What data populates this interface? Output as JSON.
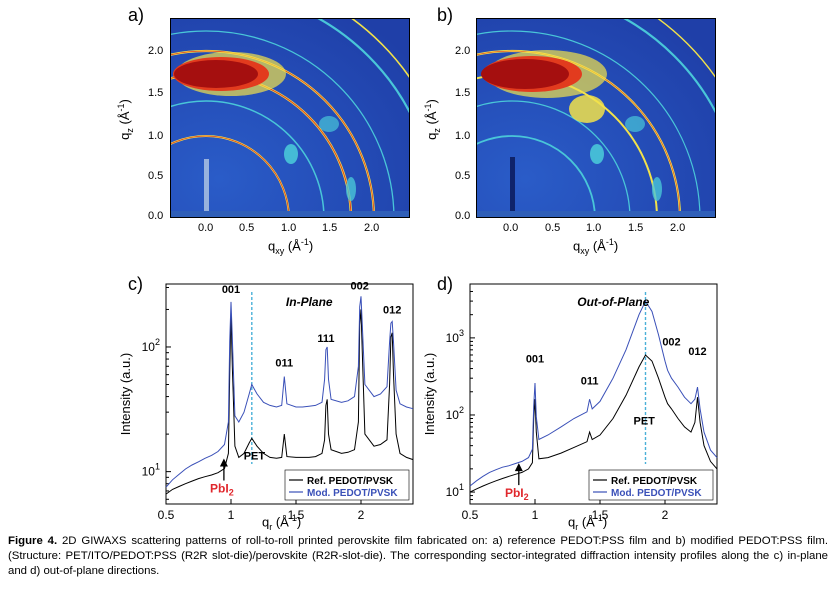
{
  "figure": {
    "panel_a": {
      "letter": "a)"
    },
    "panel_b": {
      "letter": "b)"
    },
    "panel_c": {
      "letter": "c)"
    },
    "panel_d": {
      "letter": "d)"
    },
    "caption": {
      "label": "Figure 4.",
      "text": "2D GIWAXS scattering patterns of roll-to-roll printed perovskite film fabricated on: a) reference PEDOT:PSS film and b) modified PEDOT:PSS film. (Structure: PET/ITO/PEDOT:PSS (R2R slot-die)/perovskite (R2R-slot-die). The corresponding sector-integrated diffraction intensity profiles along the c) in-plane and d) out-of-plane directions."
    }
  },
  "chart_data": [
    {
      "type": "heatmap",
      "panel": "a)",
      "xlabel": "q_xy (Å^-1)",
      "ylabel": "q_z (Å^-1)",
      "xlim": [
        -0.4,
        2.4
      ],
      "ylim": [
        0.0,
        2.35
      ],
      "x_ticks": [
        "0.0",
        "0.5",
        "1.0",
        "1.5",
        "2.0"
      ],
      "y_ticks": [
        "0.0",
        "0.5",
        "1.0",
        "1.5",
        "2.0"
      ],
      "colormap": [
        "#1f3fa8",
        "#2f7fd8",
        "#49c6d8",
        "#f2e24a",
        "#e23b1e",
        "#a50f0f"
      ]
    },
    {
      "type": "heatmap",
      "panel": "b)",
      "xlabel": "q_xy (Å^-1)",
      "ylabel": "q_z (Å^-1)",
      "xlim": [
        -0.4,
        2.4
      ],
      "ylim": [
        0.0,
        2.35
      ],
      "x_ticks": [
        "0.0",
        "0.5",
        "1.0",
        "1.5",
        "2.0"
      ],
      "y_ticks": [
        "0.0",
        "0.5",
        "1.0",
        "1.5",
        "2.0"
      ],
      "colormap": [
        "#1f3fa8",
        "#2f7fd8",
        "#49c6d8",
        "#f2e24a",
        "#e23b1e",
        "#a50f0f"
      ]
    },
    {
      "type": "line",
      "panel": "c)",
      "title": "In-Plane",
      "xlabel": "q_r (Å^-1)",
      "ylabel": "Intensity (a.u.)",
      "xlim": [
        0.5,
        2.4
      ],
      "ylim": [
        5.5,
        320
      ],
      "y_scale": "log",
      "x_ticks": [
        "0.5",
        "1",
        "1.5",
        "2"
      ],
      "y_ticks": [
        {
          "base": "10",
          "exp": "1",
          "value": 10
        },
        {
          "base": "10",
          "exp": "2",
          "value": 100
        }
      ],
      "legend_position": "bottom-right",
      "series": [
        {
          "name": "Ref. PEDOT/PVSK",
          "color": "#000000",
          "points": [
            [
              0.5,
              6.6
            ],
            [
              0.55,
              7.2
            ],
            [
              0.6,
              7.6
            ],
            [
              0.65,
              8.0
            ],
            [
              0.7,
              8.4
            ],
            [
              0.75,
              8.8
            ],
            [
              0.8,
              9.1
            ],
            [
              0.85,
              9.4
            ],
            [
              0.9,
              9.8
            ],
            [
              0.95,
              10.6
            ],
            [
              0.98,
              14
            ],
            [
              0.99,
              60
            ],
            [
              1.0,
              190
            ],
            [
              1.01,
              70
            ],
            [
              1.03,
              16
            ],
            [
              1.06,
              13
            ],
            [
              1.1,
              14
            ],
            [
              1.14,
              17
            ],
            [
              1.16,
              18.5
            ],
            [
              1.2,
              16
            ],
            [
              1.25,
              14
            ],
            [
              1.3,
              13
            ],
            [
              1.35,
              12.8
            ],
            [
              1.39,
              13
            ],
            [
              1.41,
              20
            ],
            [
              1.43,
              13.2
            ],
            [
              1.5,
              13
            ],
            [
              1.55,
              13
            ],
            [
              1.6,
              13
            ],
            [
              1.65,
              13.2
            ],
            [
              1.7,
              14
            ],
            [
              1.72,
              18
            ],
            [
              1.73,
              34
            ],
            [
              1.74,
              38
            ],
            [
              1.75,
              20
            ],
            [
              1.77,
              15
            ],
            [
              1.85,
              14
            ],
            [
              1.9,
              14.3
            ],
            [
              1.95,
              15
            ],
            [
              1.98,
              25
            ],
            [
              1.99,
              150
            ],
            [
              2.0,
              200
            ],
            [
              2.01,
              90
            ],
            [
              2.03,
              20
            ],
            [
              2.1,
              16
            ],
            [
              2.15,
              16.5
            ],
            [
              2.2,
              18
            ],
            [
              2.22,
              50
            ],
            [
              2.23,
              120
            ],
            [
              2.24,
              130
            ],
            [
              2.25,
              60
            ],
            [
              2.27,
              20
            ],
            [
              2.3,
              14
            ],
            [
              2.35,
              13
            ],
            [
              2.4,
              12.5
            ]
          ]
        },
        {
          "name": "Mod. PEDOT/PVSK",
          "color": "#3a50b8",
          "points": [
            [
              0.5,
              7.5
            ],
            [
              0.55,
              8.6
            ],
            [
              0.6,
              9.5
            ],
            [
              0.65,
              10.5
            ],
            [
              0.7,
              11.3
            ],
            [
              0.75,
              12
            ],
            [
              0.8,
              12.8
            ],
            [
              0.85,
              13.5
            ],
            [
              0.9,
              14.5
            ],
            [
              0.95,
              16.5
            ],
            [
              0.98,
              25
            ],
            [
              0.99,
              110
            ],
            [
              1.0,
              230
            ],
            [
              1.01,
              120
            ],
            [
              1.03,
              28
            ],
            [
              1.06,
              25
            ],
            [
              1.1,
              30
            ],
            [
              1.14,
              42
            ],
            [
              1.16,
              50
            ],
            [
              1.2,
              42
            ],
            [
              1.25,
              36
            ],
            [
              1.3,
              34
            ],
            [
              1.35,
              33
            ],
            [
              1.39,
              34
            ],
            [
              1.41,
              58
            ],
            [
              1.43,
              35
            ],
            [
              1.5,
              33
            ],
            [
              1.55,
              33
            ],
            [
              1.6,
              33.5
            ],
            [
              1.65,
              34
            ],
            [
              1.7,
              36
            ],
            [
              1.72,
              55
            ],
            [
              1.73,
              95
            ],
            [
              1.74,
              100
            ],
            [
              1.75,
              55
            ],
            [
              1.77,
              38
            ],
            [
              1.85,
              36
            ],
            [
              1.9,
              37
            ],
            [
              1.95,
              40
            ],
            [
              1.98,
              70
            ],
            [
              1.99,
              210
            ],
            [
              2.0,
              255
            ],
            [
              2.01,
              150
            ],
            [
              2.03,
              50
            ],
            [
              2.1,
              40
            ],
            [
              2.15,
              42
            ],
            [
              2.2,
              48
            ],
            [
              2.22,
              110
            ],
            [
              2.23,
              155
            ],
            [
              2.24,
              160
            ],
            [
              2.25,
              110
            ],
            [
              2.27,
              45
            ],
            [
              2.3,
              35
            ],
            [
              2.35,
              33
            ],
            [
              2.4,
              32
            ]
          ]
        }
      ],
      "annotations": [
        {
          "text": "001",
          "x": 1.0,
          "y": 270
        },
        {
          "text": "011",
          "x": 1.41,
          "y": 70
        },
        {
          "text": "111",
          "x": 1.73,
          "y": 110
        },
        {
          "text": "002",
          "x": 1.99,
          "y": 290
        },
        {
          "text": "012",
          "x": 2.24,
          "y": 185
        },
        {
          "text": "PET",
          "x": 1.18,
          "y": 12.5
        },
        {
          "text": "PbI2",
          "x": 0.93,
          "y": 6.8,
          "color": "#e0272c"
        }
      ],
      "dashed_marker_x": 1.16
    },
    {
      "type": "line",
      "panel": "d)",
      "title": "Out-of-Plane",
      "xlabel": "q_r (Å^-1)",
      "ylabel": "Intensity (a.u.)",
      "xlim": [
        0.5,
        2.4
      ],
      "ylim": [
        7,
        5000
      ],
      "y_scale": "log",
      "x_ticks": [
        "0.5",
        "1",
        "1.5",
        "2"
      ],
      "y_ticks": [
        {
          "base": "10",
          "exp": "1",
          "value": 10
        },
        {
          "base": "10",
          "exp": "2",
          "value": 100
        },
        {
          "base": "10",
          "exp": "3",
          "value": 1000
        }
      ],
      "legend_position": "bottom-right",
      "series": [
        {
          "name": "Ref. PEDOT/PVSK",
          "color": "#000000",
          "points": [
            [
              0.5,
              10
            ],
            [
              0.55,
              11
            ],
            [
              0.6,
              12
            ],
            [
              0.65,
              13
            ],
            [
              0.7,
              14
            ],
            [
              0.75,
              15
            ],
            [
              0.8,
              16
            ],
            [
              0.85,
              17
            ],
            [
              0.9,
              18
            ],
            [
              0.95,
              20
            ],
            [
              0.98,
              24
            ],
            [
              0.99,
              90
            ],
            [
              1.0,
              160
            ],
            [
              1.01,
              60
            ],
            [
              1.03,
              27
            ],
            [
              1.1,
              28
            ],
            [
              1.2,
              32
            ],
            [
              1.3,
              38
            ],
            [
              1.4,
              45
            ],
            [
              1.42,
              60
            ],
            [
              1.44,
              48
            ],
            [
              1.5,
              55
            ],
            [
              1.6,
              90
            ],
            [
              1.7,
              180
            ],
            [
              1.8,
              420
            ],
            [
              1.85,
              600
            ],
            [
              1.9,
              500
            ],
            [
              1.95,
              300
            ],
            [
              2.0,
              170
            ],
            [
              2.02,
              140
            ],
            [
              2.05,
              120
            ],
            [
              2.1,
              90
            ],
            [
              2.15,
              70
            ],
            [
              2.2,
              60
            ],
            [
              2.23,
              80
            ],
            [
              2.25,
              170
            ],
            [
              2.27,
              80
            ],
            [
              2.3,
              40
            ],
            [
              2.35,
              25
            ],
            [
              2.4,
              20
            ]
          ]
        },
        {
          "name": "Mod. PEDOT/PVSK",
          "color": "#3a50b8",
          "points": [
            [
              0.5,
              12
            ],
            [
              0.55,
              14
            ],
            [
              0.6,
              16
            ],
            [
              0.65,
              18
            ],
            [
              0.7,
              19.5
            ],
            [
              0.75,
              21
            ],
            [
              0.8,
              22
            ],
            [
              0.85,
              23.5
            ],
            [
              0.9,
              25
            ],
            [
              0.95,
              28
            ],
            [
              0.98,
              36
            ],
            [
              0.99,
              130
            ],
            [
              1.0,
              260
            ],
            [
              1.01,
              95
            ],
            [
              1.03,
              48
            ],
            [
              1.1,
              55
            ],
            [
              1.2,
              70
            ],
            [
              1.3,
              90
            ],
            [
              1.4,
              110
            ],
            [
              1.42,
              160
            ],
            [
              1.44,
              120
            ],
            [
              1.5,
              150
            ],
            [
              1.6,
              300
            ],
            [
              1.7,
              700
            ],
            [
              1.8,
              2000
            ],
            [
              1.85,
              3000
            ],
            [
              1.9,
              2200
            ],
            [
              1.95,
              1100
            ],
            [
              2.0,
              500
            ],
            [
              2.02,
              380
            ],
            [
              2.05,
              300
            ],
            [
              2.1,
              230
            ],
            [
              2.15,
              170
            ],
            [
              2.2,
              140
            ],
            [
              2.23,
              160
            ],
            [
              2.25,
              230
            ],
            [
              2.27,
              120
            ],
            [
              2.3,
              60
            ],
            [
              2.35,
              35
            ],
            [
              2.4,
              28
            ]
          ]
        }
      ],
      "annotations": [
        {
          "text": "001",
          "x": 1.0,
          "y": 480
        },
        {
          "text": "011",
          "x": 1.42,
          "y": 250
        },
        {
          "text": "002",
          "x": 2.05,
          "y": 800
        },
        {
          "text": "012",
          "x": 2.25,
          "y": 600
        },
        {
          "text": "PET",
          "x": 1.84,
          "y": 75
        },
        {
          "text": "PbI2",
          "x": 0.86,
          "y": 8.6,
          "color": "#e0272c"
        }
      ],
      "dashed_marker_x": 1.85
    }
  ]
}
